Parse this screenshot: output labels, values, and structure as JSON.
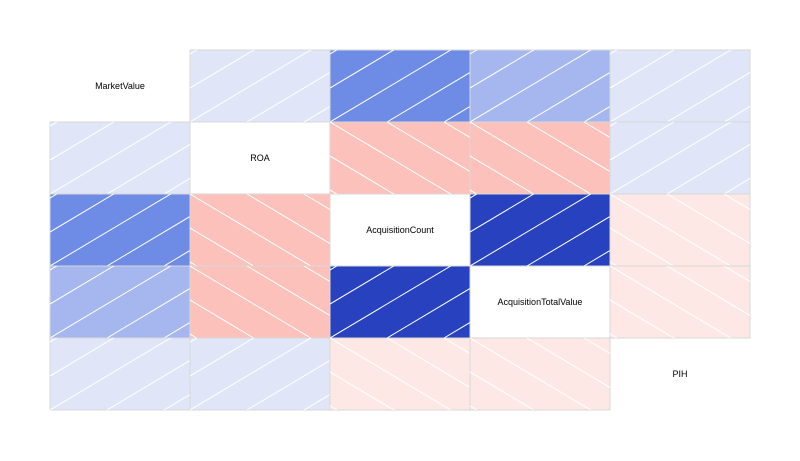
{
  "chart_data": {
    "type": "heatmap",
    "title": "",
    "variables": [
      "MarketValue",
      "ROA",
      "AcquisitionCount",
      "AcquisitionTotalValue",
      "PIH"
    ],
    "matrix": [
      [
        1.0,
        0.15,
        0.6,
        0.4,
        0.15
      ],
      [
        0.15,
        1.0,
        -0.35,
        -0.35,
        0.15
      ],
      [
        0.6,
        -0.35,
        1.0,
        0.95,
        -0.1
      ],
      [
        0.4,
        -0.35,
        0.95,
        1.0,
        -0.1
      ],
      [
        0.15,
        0.15,
        -0.1,
        -0.1,
        1.0
      ]
    ],
    "diagonal": "labels",
    "upper_panel": "shade",
    "lower_panel": "shade",
    "shading": "positive correlations blue with lines rising, negative correlations red with lines falling",
    "grid": false,
    "legend": "none",
    "colors": {
      "positive": [
        "#e0e6f8",
        "#a6b7f0",
        "#6e8be6",
        "#2841be"
      ],
      "negative": [
        "#fde8e6",
        "#fcc1ba"
      ],
      "hatch": "#ffffff",
      "border": "#d7d7d7"
    }
  }
}
